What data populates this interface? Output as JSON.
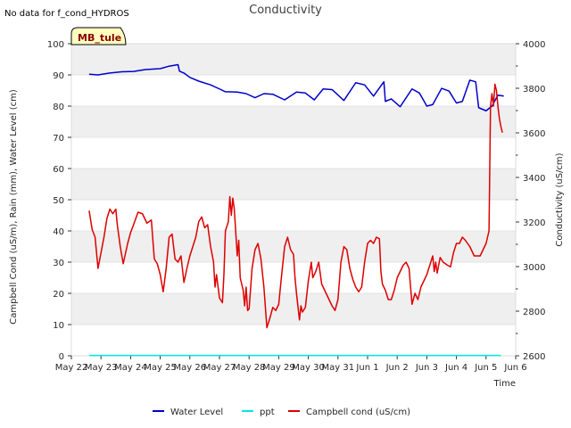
{
  "chart_data": {
    "type": "line",
    "title": "Conductivity",
    "note": "No data for f_cond_HYDROS",
    "badge": "MB_tule",
    "xlabel": "Time",
    "ylabel_left": "Campbell Cond (uS/m), Rain (mm), Water Level (cm)",
    "ylabel_right": "Conductivity (uS/cm)",
    "x_range": [
      0,
      15
    ],
    "ylim_left": [
      0,
      100
    ],
    "ylim_right": [
      2600,
      4000
    ],
    "x_ticks": [
      {
        "v": 0,
        "label": "May 22"
      },
      {
        "v": 1,
        "label": "May 23"
      },
      {
        "v": 2,
        "label": "May 24"
      },
      {
        "v": 3,
        "label": "May 25"
      },
      {
        "v": 4,
        "label": "May 26"
      },
      {
        "v": 5,
        "label": "May 27"
      },
      {
        "v": 6,
        "label": "May 28"
      },
      {
        "v": 7,
        "label": "May 29"
      },
      {
        "v": 8,
        "label": "May 30"
      },
      {
        "v": 9,
        "label": "May 31"
      },
      {
        "v": 10,
        "label": "Jun 1"
      },
      {
        "v": 11,
        "label": "Jun 2"
      },
      {
        "v": 12,
        "label": "Jun 3"
      },
      {
        "v": 13,
        "label": "Jun 4"
      },
      {
        "v": 14,
        "label": "Jun 5"
      },
      {
        "v": 15,
        "label": "Jun 6"
      }
    ],
    "y_ticks_left": [
      {
        "v": 0,
        "label": "0"
      },
      {
        "v": 10,
        "label": "10"
      },
      {
        "v": 20,
        "label": "20"
      },
      {
        "v": 30,
        "label": "30"
      },
      {
        "v": 40,
        "label": "40"
      },
      {
        "v": 50,
        "label": "50"
      },
      {
        "v": 60,
        "label": "60"
      },
      {
        "v": 70,
        "label": "70"
      },
      {
        "v": 80,
        "label": "80"
      },
      {
        "v": 90,
        "label": "90"
      },
      {
        "v": 100,
        "label": "100"
      }
    ],
    "y_ticks_right": [
      {
        "v": 2600,
        "label": "2600"
      },
      {
        "v": 2800,
        "label": "2800"
      },
      {
        "v": 3000,
        "label": "3000"
      },
      {
        "v": 3200,
        "label": "3200"
      },
      {
        "v": 3400,
        "label": "3400"
      },
      {
        "v": 3600,
        "label": "3600"
      },
      {
        "v": 3800,
        "label": "3800"
      },
      {
        "v": 4000,
        "label": "4000"
      }
    ],
    "series": [
      {
        "name": "Water Level",
        "color": "#0000cc",
        "axis": "left",
        "points": [
          [
            0.6,
            90.2
          ],
          [
            0.9,
            90.0
          ],
          [
            1.3,
            90.6
          ],
          [
            1.7,
            91.0
          ],
          [
            2.1,
            91.1
          ],
          [
            2.5,
            91.7
          ],
          [
            3.0,
            92.0
          ],
          [
            3.3,
            92.8
          ],
          [
            3.6,
            93.3
          ],
          [
            3.65,
            91.2
          ],
          [
            3.8,
            90.6
          ],
          [
            4.0,
            89.2
          ],
          [
            4.3,
            88.0
          ],
          [
            4.7,
            86.8
          ],
          [
            5.0,
            85.5
          ],
          [
            5.2,
            84.6
          ],
          [
            5.6,
            84.5
          ],
          [
            5.9,
            84.0
          ],
          [
            6.2,
            82.7
          ],
          [
            6.5,
            84.0
          ],
          [
            6.8,
            83.8
          ],
          [
            7.2,
            82.0
          ],
          [
            7.6,
            84.5
          ],
          [
            7.9,
            84.2
          ],
          [
            8.2,
            82.0
          ],
          [
            8.5,
            85.5
          ],
          [
            8.8,
            85.3
          ],
          [
            9.2,
            81.8
          ],
          [
            9.6,
            87.5
          ],
          [
            9.9,
            86.8
          ],
          [
            10.2,
            83.2
          ],
          [
            10.55,
            87.8
          ],
          [
            10.6,
            81.5
          ],
          [
            10.8,
            82.3
          ],
          [
            11.1,
            79.8
          ],
          [
            11.5,
            85.5
          ],
          [
            11.75,
            84.2
          ],
          [
            12.0,
            80.0
          ],
          [
            12.2,
            80.5
          ],
          [
            12.5,
            85.7
          ],
          [
            12.75,
            84.8
          ],
          [
            13.0,
            81.0
          ],
          [
            13.2,
            81.5
          ],
          [
            13.45,
            88.3
          ],
          [
            13.65,
            87.8
          ],
          [
            13.75,
            79.5
          ],
          [
            14.0,
            78.5
          ],
          [
            14.2,
            80.0
          ],
          [
            14.4,
            83.5
          ],
          [
            14.6,
            83.2
          ]
        ]
      },
      {
        "name": "ppt",
        "color": "#00e5e5",
        "axis": "left",
        "points": [
          [
            0.6,
            0.1
          ],
          [
            14.5,
            0.1
          ]
        ]
      },
      {
        "name": "Campbell cond (uS/cm)",
        "color": "#dd0000",
        "axis": "left",
        "points": [
          [
            0.6,
            46.5
          ],
          [
            0.7,
            40.5
          ],
          [
            0.8,
            38.0
          ],
          [
            0.9,
            28.0
          ],
          [
            1.0,
            33.0
          ],
          [
            1.1,
            38.0
          ],
          [
            1.2,
            44.0
          ],
          [
            1.3,
            47.0
          ],
          [
            1.4,
            45.5
          ],
          [
            1.5,
            47.0
          ],
          [
            1.55,
            42.0
          ],
          [
            1.65,
            35.0
          ],
          [
            1.75,
            29.5
          ],
          [
            1.9,
            36.0
          ],
          [
            2.0,
            39.5
          ],
          [
            2.1,
            42.0
          ],
          [
            2.25,
            46.0
          ],
          [
            2.4,
            45.5
          ],
          [
            2.55,
            42.5
          ],
          [
            2.7,
            43.5
          ],
          [
            2.8,
            31.0
          ],
          [
            2.9,
            29.5
          ],
          [
            3.0,
            26.0
          ],
          [
            3.1,
            20.5
          ],
          [
            3.2,
            28.0
          ],
          [
            3.3,
            38.0
          ],
          [
            3.4,
            39.0
          ],
          [
            3.5,
            31.0
          ],
          [
            3.6,
            30.0
          ],
          [
            3.7,
            32.0
          ],
          [
            3.8,
            23.5
          ],
          [
            3.9,
            28.0
          ],
          [
            4.0,
            32.0
          ],
          [
            4.1,
            35.0
          ],
          [
            4.2,
            38.0
          ],
          [
            4.3,
            43.0
          ],
          [
            4.4,
            44.5
          ],
          [
            4.5,
            41.0
          ],
          [
            4.6,
            42.0
          ],
          [
            4.7,
            35.0
          ],
          [
            4.8,
            30.0
          ],
          [
            4.85,
            22.0
          ],
          [
            4.9,
            26.0
          ],
          [
            5.0,
            18.5
          ],
          [
            5.1,
            17.0
          ],
          [
            5.15,
            26.0
          ],
          [
            5.2,
            40.0
          ],
          [
            5.3,
            43.0
          ],
          [
            5.35,
            51.0
          ],
          [
            5.4,
            45.0
          ],
          [
            5.45,
            50.5
          ],
          [
            5.5,
            47.0
          ],
          [
            5.6,
            32.0
          ],
          [
            5.65,
            37.0
          ],
          [
            5.7,
            25.0
          ],
          [
            5.8,
            21.0
          ],
          [
            5.85,
            16.0
          ],
          [
            5.9,
            22.0
          ],
          [
            5.95,
            14.5
          ],
          [
            6.0,
            15.0
          ],
          [
            6.1,
            28.0
          ],
          [
            6.2,
            34.0
          ],
          [
            6.3,
            36.0
          ],
          [
            6.4,
            31.0
          ],
          [
            6.5,
            22.0
          ],
          [
            6.6,
            9.0
          ],
          [
            6.7,
            12.0
          ],
          [
            6.8,
            15.5
          ],
          [
            6.9,
            14.5
          ],
          [
            7.0,
            16.5
          ],
          [
            7.1,
            26.0
          ],
          [
            7.2,
            35.0
          ],
          [
            7.3,
            38.0
          ],
          [
            7.4,
            34.0
          ],
          [
            7.5,
            32.5
          ],
          [
            7.55,
            25.0
          ],
          [
            7.6,
            20.0
          ],
          [
            7.7,
            11.5
          ],
          [
            7.75,
            16.0
          ],
          [
            7.8,
            14.0
          ],
          [
            7.9,
            15.5
          ],
          [
            8.0,
            24.0
          ],
          [
            8.1,
            30.0
          ],
          [
            8.15,
            25.0
          ],
          [
            8.25,
            27.0
          ],
          [
            8.35,
            30.0
          ],
          [
            8.45,
            23.0
          ],
          [
            8.6,
            20.0
          ],
          [
            8.7,
            18.0
          ],
          [
            8.8,
            16.0
          ],
          [
            8.9,
            14.5
          ],
          [
            9.0,
            18.0
          ],
          [
            9.1,
            30.0
          ],
          [
            9.2,
            35.0
          ],
          [
            9.3,
            34.0
          ],
          [
            9.4,
            28.0
          ],
          [
            9.5,
            24.5
          ],
          [
            9.6,
            22.0
          ],
          [
            9.7,
            20.5
          ],
          [
            9.8,
            22.0
          ],
          [
            9.9,
            30.0
          ],
          [
            10.0,
            36.0
          ],
          [
            10.1,
            37.0
          ],
          [
            10.2,
            36.0
          ],
          [
            10.3,
            38.0
          ],
          [
            10.4,
            37.5
          ],
          [
            10.45,
            27.0
          ],
          [
            10.5,
            23.0
          ],
          [
            10.6,
            21.0
          ],
          [
            10.7,
            18.0
          ],
          [
            10.8,
            18.0
          ],
          [
            10.9,
            21.0
          ],
          [
            11.0,
            25.0
          ],
          [
            11.2,
            29.0
          ],
          [
            11.3,
            30.0
          ],
          [
            11.4,
            28.0
          ],
          [
            11.5,
            16.5
          ],
          [
            11.6,
            20.0
          ],
          [
            11.7,
            18.0
          ],
          [
            11.8,
            22.0
          ],
          [
            11.9,
            24.0
          ],
          [
            12.0,
            26.0
          ],
          [
            12.1,
            29.0
          ],
          [
            12.2,
            32.0
          ],
          [
            12.25,
            27.0
          ],
          [
            12.3,
            30.0
          ],
          [
            12.35,
            26.5
          ],
          [
            12.45,
            31.5
          ],
          [
            12.55,
            30.0
          ],
          [
            12.7,
            29.0
          ],
          [
            12.8,
            28.5
          ],
          [
            12.9,
            33.0
          ],
          [
            13.0,
            36.0
          ],
          [
            13.1,
            36.0
          ],
          [
            13.2,
            38.0
          ],
          [
            13.3,
            37.0
          ],
          [
            13.45,
            35.0
          ],
          [
            13.6,
            32.0
          ],
          [
            13.8,
            32.0
          ],
          [
            14.0,
            36.0
          ],
          [
            14.1,
            40.0
          ],
          [
            14.15,
            80.0
          ],
          [
            14.2,
            84.0
          ],
          [
            14.25,
            80.0
          ],
          [
            14.3,
            87.0
          ],
          [
            14.35,
            85.0
          ],
          [
            14.4,
            80.0
          ],
          [
            14.45,
            76.0
          ],
          [
            14.5,
            73.5
          ],
          [
            14.55,
            71.5
          ]
        ]
      }
    ],
    "legend": [
      {
        "label": "Water Level",
        "color": "#0000cc"
      },
      {
        "label": "ppt",
        "color": "#00e5e5"
      },
      {
        "label": "Campbell cond (uS/cm)",
        "color": "#dd0000"
      }
    ],
    "legend_position": "bottom-center",
    "grid": "horizontal-bands"
  }
}
